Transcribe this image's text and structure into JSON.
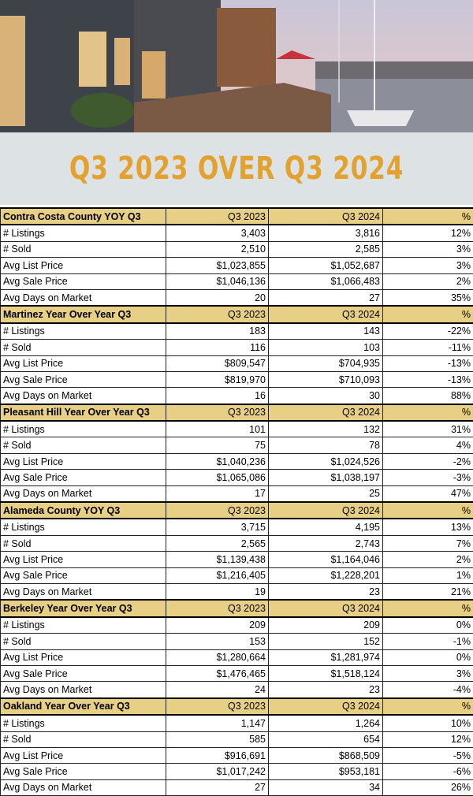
{
  "header": {
    "title": "Q3 2023 OVER Q3 2024"
  },
  "table": {
    "sections": [
      {
        "header": [
          "Contra Costa County YOY Q3",
          "Q3 2023",
          "Q3 2024",
          "%"
        ],
        "rows": [
          [
            "# Listings",
            "3,403",
            "3,816",
            "12%"
          ],
          [
            "# Sold",
            "2,510",
            "2,585",
            "3%"
          ],
          [
            "Avg List Price",
            "$1,023,855",
            "$1,052,687",
            "3%"
          ],
          [
            "Avg Sale Price",
            "$1,046,136",
            "$1,066,483",
            "2%"
          ],
          [
            "Avg Days on Market",
            "20",
            "27",
            "35%"
          ]
        ]
      },
      {
        "header": [
          "Martinez Year Over Year Q3",
          "Q3 2023",
          "Q3 2024",
          "%"
        ],
        "rows": [
          [
            "# Listings",
            "183",
            "143",
            "-22%"
          ],
          [
            "# Sold",
            "116",
            "103",
            "-11%"
          ],
          [
            "Avg List Price",
            "$809,547",
            "$704,935",
            "-13%"
          ],
          [
            "Avg Sale Price",
            "$819,970",
            "$710,093",
            "-13%"
          ],
          [
            "Avg Days on Market",
            "16",
            "30",
            "88%"
          ]
        ]
      },
      {
        "header": [
          "Pleasant Hill Year Over Year Q3",
          "Q3 2023",
          "Q3 2024",
          "%"
        ],
        "rows": [
          [
            "# Listings",
            "101",
            "132",
            "31%"
          ],
          [
            "# Sold",
            "75",
            "78",
            "4%"
          ],
          [
            "Avg List Price",
            "$1,040,236",
            "$1,024,526",
            "-2%"
          ],
          [
            "Avg Sale Price",
            "$1,065,086",
            "$1,038,197",
            "-3%"
          ],
          [
            "Avg Days on Market",
            "17",
            "25",
            "47%"
          ]
        ]
      },
      {
        "header": [
          "Alameda County YOY Q3",
          "Q3 2023",
          "Q3 2024",
          "%"
        ],
        "rows": [
          [
            "# Listings",
            "3,715",
            "4,195",
            "13%"
          ],
          [
            "# Sold",
            "2,565",
            "2,743",
            "7%"
          ],
          [
            "Avg List Price",
            "$1,139,438",
            "$1,164,046",
            "2%"
          ],
          [
            "Avg Sale Price",
            "$1,216,405",
            "$1,228,201",
            "1%"
          ],
          [
            "Avg Days on Market",
            "19",
            "23",
            "21%"
          ]
        ]
      },
      {
        "header": [
          "Berkeley Year Over Year Q3",
          "Q3 2023",
          "Q3 2024",
          "%"
        ],
        "rows": [
          [
            "# Listings",
            "209",
            "209",
            "0%"
          ],
          [
            "# Sold",
            "153",
            "152",
            "-1%"
          ],
          [
            "Avg List Price",
            "$1,280,664",
            "$1,281,974",
            "0%"
          ],
          [
            "Avg Sale Price",
            "$1,476,465",
            "$1,518,124",
            "3%"
          ],
          [
            "Avg Days on Market",
            "24",
            "23",
            "-4%"
          ]
        ]
      },
      {
        "header": [
          "Oakland Year Over Year Q3",
          "Q3 2023",
          "Q3 2024",
          "%"
        ],
        "rows": [
          [
            "# Listings",
            "1,147",
            "1,264",
            "10%"
          ],
          [
            "# Sold",
            "585",
            "654",
            "12%"
          ],
          [
            "Avg List Price",
            "$916,691",
            "$868,509",
            "-5%"
          ],
          [
            "Avg Sale Price",
            "$1,017,242",
            "$953,181",
            "-6%"
          ],
          [
            "Avg Days on Market",
            "27",
            "34",
            "26%"
          ]
        ]
      }
    ]
  }
}
